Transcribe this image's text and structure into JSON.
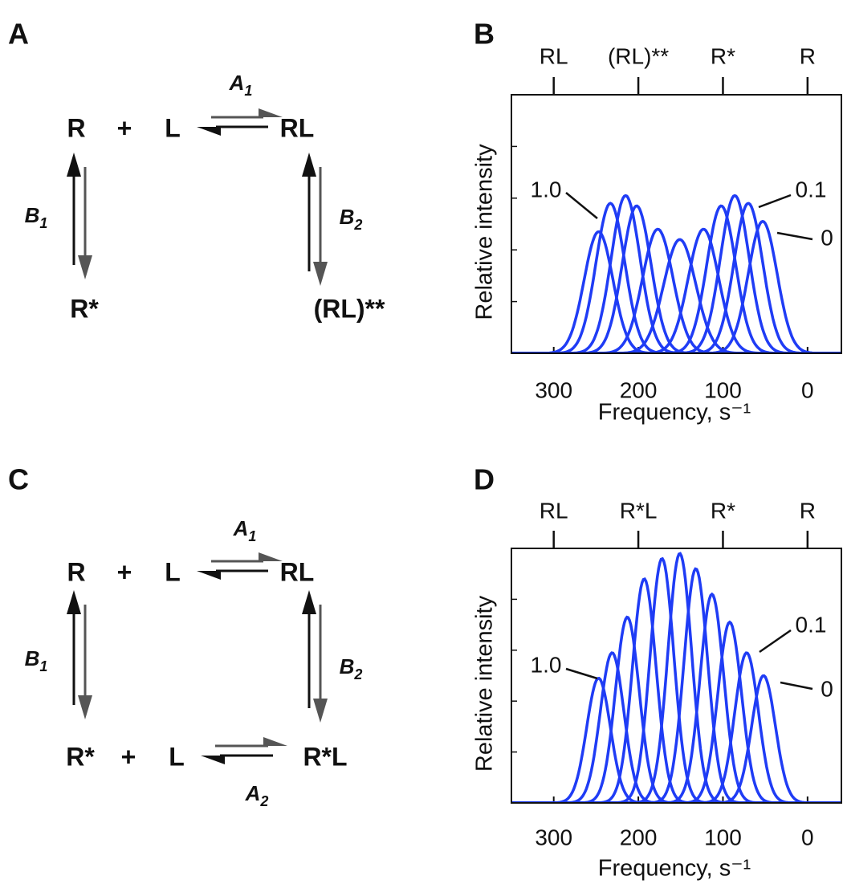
{
  "diagrams": [
    {
      "panel": "A",
      "species": [
        "R",
        "+",
        "L",
        "RL",
        "R*",
        "(RL)**"
      ],
      "rates": [
        {
          "symbol": "A",
          "sub": "1"
        },
        {
          "symbol": "B",
          "sub": "1"
        },
        {
          "symbol": "B",
          "sub": "2"
        }
      ]
    },
    {
      "panel": "C",
      "species": [
        "R",
        "+",
        "L",
        "RL",
        "R*",
        "+",
        "L",
        "R*L"
      ],
      "rates": [
        {
          "symbol": "A",
          "sub": "1"
        },
        {
          "symbol": "B",
          "sub": "1"
        },
        {
          "symbol": "B",
          "sub": "2"
        },
        {
          "symbol": "A",
          "sub": "2"
        }
      ]
    }
  ],
  "chart_data": [
    {
      "type": "spectrum",
      "panel": "B",
      "xlabel": "Frequency, s⁻¹",
      "ylabel": "Relative intensity",
      "color": "#1f3cf5",
      "xlim": [
        350,
        -40
      ],
      "xticks": [
        300,
        200,
        100,
        0
      ],
      "x2ticks": [
        {
          "value": 300,
          "label": "RL"
        },
        {
          "value": 200,
          "label": "(RL)**"
        },
        {
          "value": 100,
          "label": "R*"
        },
        {
          "value": 0,
          "label": "R"
        }
      ],
      "ylim": [
        0,
        1
      ],
      "yticks": [
        0.2,
        0.4,
        0.6,
        0.8,
        1.0
      ],
      "ytick_labels": false,
      "peaks": [
        {
          "center": 247,
          "height": 0.47,
          "width": 17
        },
        {
          "center": 233,
          "height": 0.58,
          "width": 17
        },
        {
          "center": 215,
          "height": 0.61,
          "width": 17
        },
        {
          "center": 202,
          "height": 0.57,
          "width": 17
        },
        {
          "center": 177,
          "height": 0.48,
          "width": 18
        },
        {
          "center": 151,
          "height": 0.44,
          "width": 19
        },
        {
          "center": 123,
          "height": 0.48,
          "width": 18
        },
        {
          "center": 102,
          "height": 0.57,
          "width": 17
        },
        {
          "center": 86,
          "height": 0.61,
          "width": 17
        },
        {
          "center": 70,
          "height": 0.58,
          "width": 17
        },
        {
          "center": 53,
          "height": 0.51,
          "width": 17
        }
      ],
      "annotations": [
        "1.0",
        "0.1",
        "0"
      ]
    },
    {
      "type": "spectrum",
      "panel": "D",
      "xlabel": "Frequency, s⁻¹",
      "ylabel": "Relative intensity",
      "color": "#1f3cf5",
      "xlim": [
        350,
        -40
      ],
      "xticks": [
        300,
        200,
        100,
        0
      ],
      "x2ticks": [
        {
          "value": 300,
          "label": "RL"
        },
        {
          "value": 200,
          "label": "R*L"
        },
        {
          "value": 100,
          "label": "R*"
        },
        {
          "value": 0,
          "label": "R"
        }
      ],
      "ylim": [
        0,
        1
      ],
      "yticks": [
        0.2,
        0.4,
        0.6,
        0.8,
        1.0
      ],
      "ytick_labels": false,
      "peaks": [
        {
          "center": 247,
          "height": 0.49,
          "width": 14
        },
        {
          "center": 231,
          "height": 0.59,
          "width": 14
        },
        {
          "center": 213,
          "height": 0.73,
          "width": 14
        },
        {
          "center": 193,
          "height": 0.88,
          "width": 14
        },
        {
          "center": 172,
          "height": 0.96,
          "width": 14
        },
        {
          "center": 151,
          "height": 0.98,
          "width": 14
        },
        {
          "center": 132,
          "height": 0.92,
          "width": 14
        },
        {
          "center": 113,
          "height": 0.82,
          "width": 14
        },
        {
          "center": 92,
          "height": 0.71,
          "width": 14
        },
        {
          "center": 72,
          "height": 0.59,
          "width": 14
        },
        {
          "center": 52,
          "height": 0.5,
          "width": 14
        }
      ],
      "annotations": [
        "1.0",
        "0.1",
        "0"
      ]
    }
  ]
}
